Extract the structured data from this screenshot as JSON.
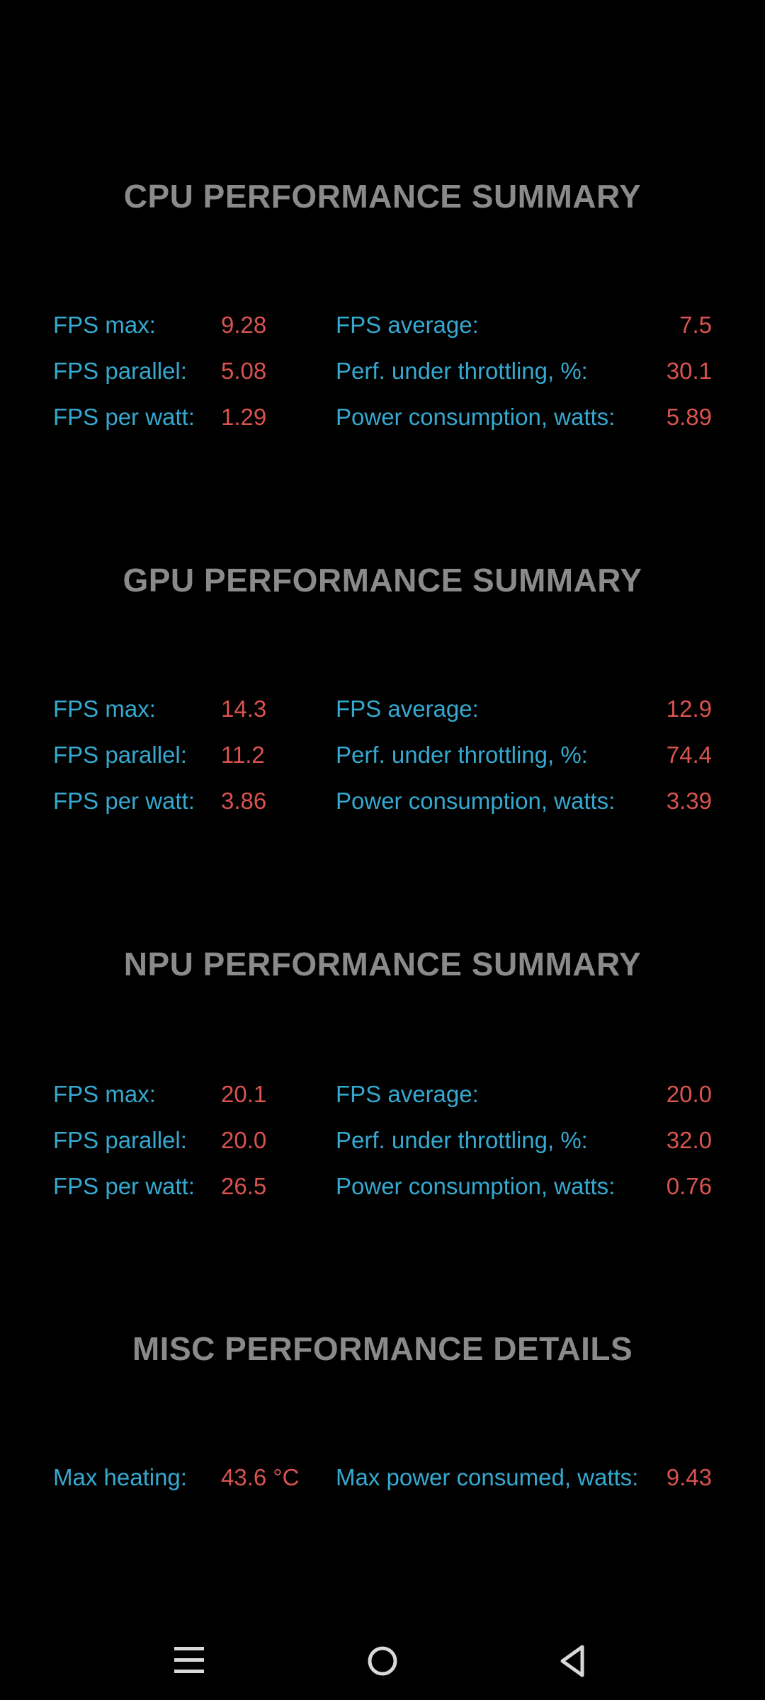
{
  "sections": [
    {
      "title": "CPU PERFORMANCE SUMMARY",
      "rows": [
        {
          "label1": "FPS max:",
          "value1": "9.28",
          "label2": "FPS average:",
          "value2": "7.5"
        },
        {
          "label1": "FPS parallel:",
          "value1": "5.08",
          "label2": "Perf. under throttling, %:",
          "value2": "30.1"
        },
        {
          "label1": "FPS per watt:",
          "value1": "1.29",
          "label2": "Power consumption, watts:",
          "value2": "5.89"
        }
      ]
    },
    {
      "title": "GPU PERFORMANCE SUMMARY",
      "rows": [
        {
          "label1": "FPS max:",
          "value1": "14.3",
          "label2": "FPS average:",
          "value2": "12.9"
        },
        {
          "label1": "FPS parallel:",
          "value1": "11.2",
          "label2": "Perf. under throttling, %:",
          "value2": "74.4"
        },
        {
          "label1": "FPS per watt:",
          "value1": "3.86",
          "label2": "Power consumption, watts:",
          "value2": "3.39"
        }
      ]
    },
    {
      "title": "NPU PERFORMANCE SUMMARY",
      "rows": [
        {
          "label1": "FPS max:",
          "value1": "20.1",
          "label2": "FPS average:",
          "value2": "20.0"
        },
        {
          "label1": "FPS parallel:",
          "value1": "20.0",
          "label2": "Perf. under throttling, %:",
          "value2": "32.0"
        },
        {
          "label1": "FPS per watt:",
          "value1": "26.5",
          "label2": "Power consumption, watts:",
          "value2": "0.76"
        }
      ]
    },
    {
      "title": "MISC PERFORMANCE DETAILS",
      "rows": [
        {
          "label1": "Max heating:",
          "value1": "43.6 °C",
          "label2": "Max power consumed, watts:",
          "value2": "9.43"
        }
      ]
    }
  ],
  "navbar": {
    "icons": [
      "menu-icon",
      "home-icon",
      "back-icon"
    ],
    "color": "#d8d8d8"
  },
  "colors": {
    "title": "#8a8a8a",
    "label": "#35a9d0",
    "value": "#d9534f",
    "background": "#000000"
  }
}
